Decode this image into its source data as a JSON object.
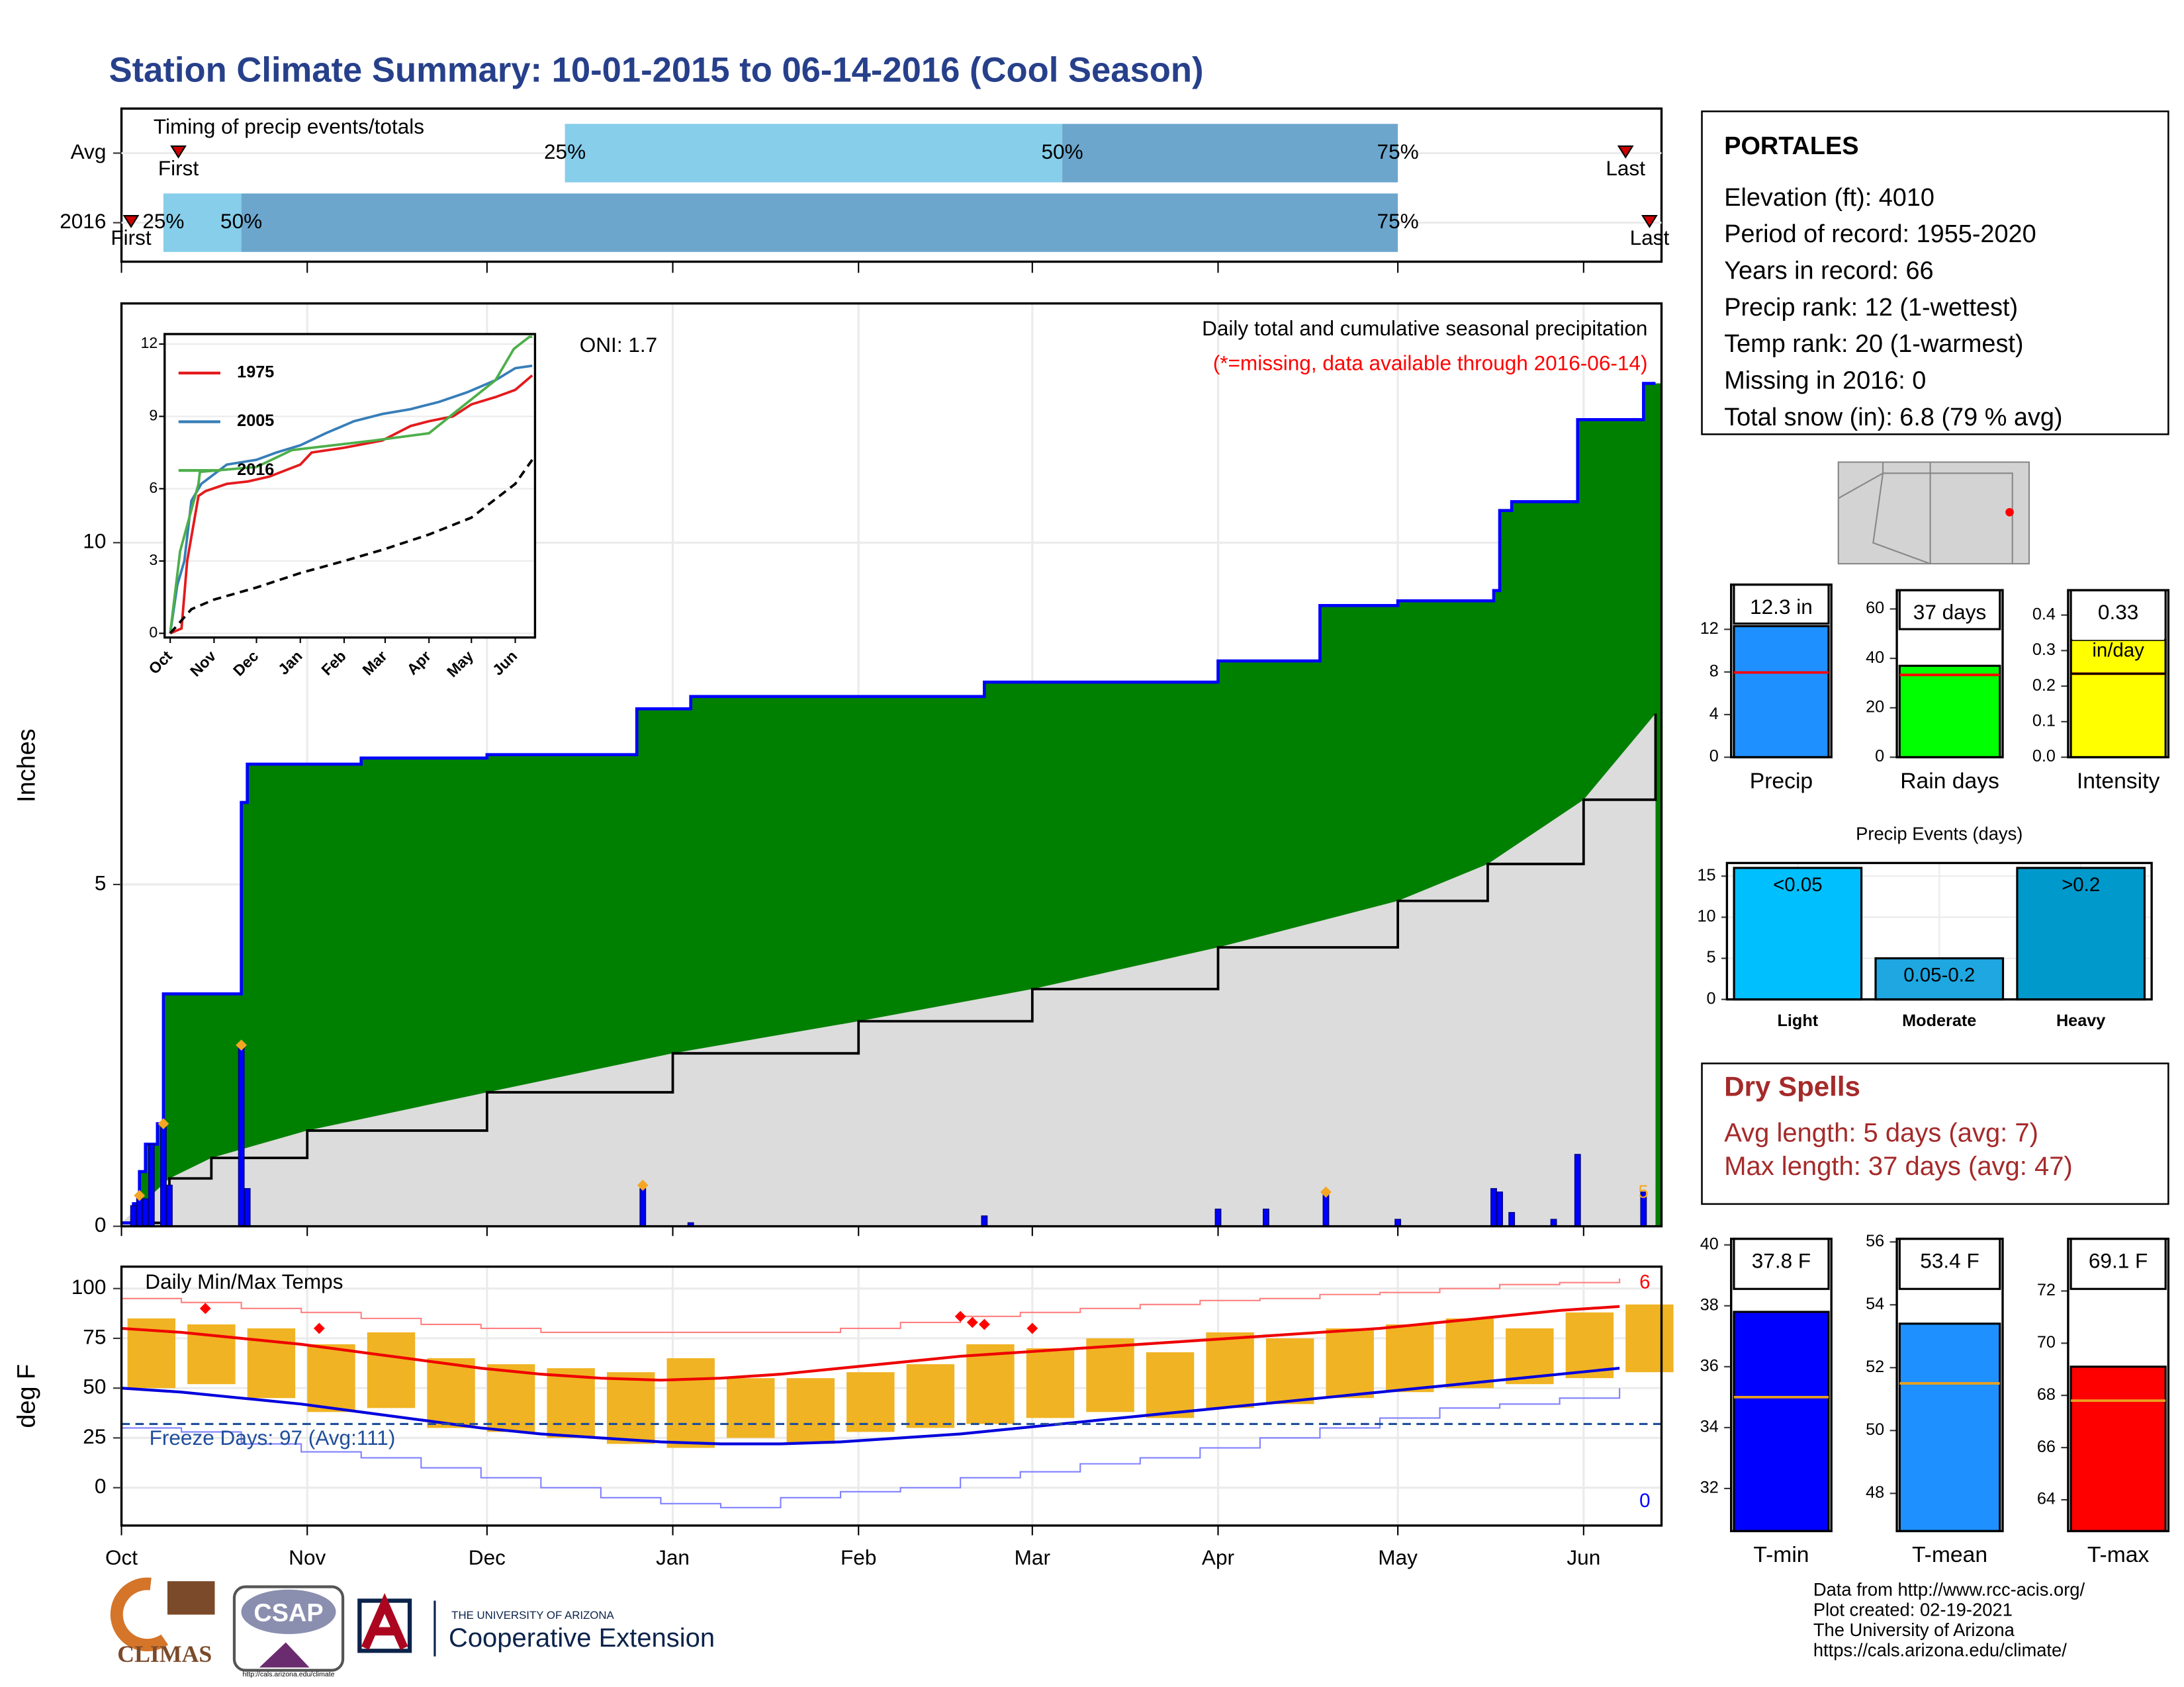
{
  "title": "Station Climate Summary: 10-01-2015 to 06-14-2016 (Cool Season)",
  "chart_data": [
    {
      "type": "timing",
      "title": "Timing of precip events/totals",
      "categories": [
        "Avg",
        "2016"
      ],
      "series": [
        {
          "name": "First",
          "values": [
            9.5,
            1.6
          ]
        },
        {
          "name": "25%",
          "values": [
            74,
            7
          ]
        },
        {
          "name": "50%",
          "values": [
            157,
            20
          ]
        },
        {
          "name": "75%",
          "values": [
            213,
            213
          ]
        },
        {
          "name": "Last",
          "values": [
            251,
            255
          ]
        }
      ],
      "colors": [
        "#87ceeb",
        "#6ca6cd"
      ],
      "marker_color": "#cc0000",
      "xlim": [
        0,
        257
      ]
    },
    {
      "type": "area",
      "title": "Daily total and cumulative seasonal precipitation",
      "subtitle": "(*=missing, data available through 2016-06-14)",
      "annotation": "ONI: 1.7",
      "ylabel": "Inches",
      "end_label": "5",
      "xlim": [
        0,
        257
      ],
      "xticks": [
        0,
        31,
        61,
        92,
        123,
        152,
        183,
        213,
        244
      ],
      "ylim": [
        0,
        13.5
      ],
      "yticks": [
        0,
        5,
        10
      ],
      "grid": true,
      "cumulative": {
        "color": "#008000",
        "line_color": "#0000ff",
        "x": [
          0,
          2,
          3,
          4,
          6,
          7,
          19,
          20,
          21,
          40,
          61,
          86,
          95,
          144,
          183,
          200,
          213,
          229,
          230,
          232,
          242,
          243,
          254,
          256
        ],
        "values": [
          0.05,
          0.33,
          0.8,
          1.2,
          1.5,
          3.4,
          3.4,
          6.2,
          6.76,
          6.85,
          6.9,
          7.57,
          7.75,
          7.96,
          8.27,
          9.08,
          9.15,
          9.3,
          10.47,
          10.6,
          10.6,
          11.8,
          12.33,
          12.33
        ]
      },
      "average": {
        "color": "#dcdcdc",
        "line_color": "#000000",
        "x": [
          0,
          8,
          15,
          31,
          61,
          92,
          123,
          152,
          183,
          213,
          228,
          244,
          256
        ],
        "values": [
          0.05,
          0.7,
          1.0,
          1.4,
          1.96,
          2.53,
          3.0,
          3.47,
          4.08,
          4.76,
          5.3,
          6.24,
          7.5
        ]
      },
      "daily": {
        "color": "#0000ff",
        "x": [
          2,
          3,
          4,
          5,
          7,
          8,
          20,
          21,
          87,
          95,
          144,
          183,
          191,
          201,
          213,
          229,
          230,
          232,
          239,
          243,
          254
        ],
        "values": [
          0.3,
          0.45,
          0.4,
          1.2,
          1.45,
          0.6,
          2.63,
          0.55,
          0.55,
          0.05,
          0.15,
          0.25,
          0.25,
          0.5,
          0.1,
          0.55,
          0.5,
          0.2,
          0.1,
          1.05,
          0.5
        ]
      },
      "markers": {
        "color": "#f5a623",
        "x": [
          3,
          7,
          20,
          87,
          201
        ],
        "values": [
          0.45,
          1.5,
          2.65,
          0.6,
          0.5
        ]
      }
    },
    {
      "type": "line",
      "xlim": [
        0,
        257
      ],
      "ylim": [
        0,
        12.3
      ],
      "yticks": [
        0,
        3,
        6,
        9,
        12
      ],
      "xticks": [
        {
          "value": 0,
          "label": "Oct"
        },
        {
          "value": 31,
          "label": "Nov"
        },
        {
          "value": 61,
          "label": "Dec"
        },
        {
          "value": 92,
          "label": "Jan"
        },
        {
          "value": 123,
          "label": "Feb"
        },
        {
          "value": 152,
          "label": "Mar"
        },
        {
          "value": 183,
          "label": "Apr"
        },
        {
          "value": 213,
          "label": "May"
        },
        {
          "value": 244,
          "label": "Jun"
        }
      ],
      "series": [
        {
          "name": "1975",
          "color": "#e41a1c",
          "x": [
            0,
            8,
            12,
            20,
            25,
            40,
            55,
            70,
            92,
            100,
            123,
            150,
            170,
            183,
            200,
            213,
            230,
            244,
            256
          ],
          "values": [
            0,
            0.2,
            3,
            5.7,
            5.9,
            6.2,
            6.3,
            6.5,
            7.0,
            7.5,
            7.7,
            8.0,
            8.6,
            8.8,
            9.0,
            9.5,
            9.8,
            10.1,
            10.7
          ]
        },
        {
          "name": "2005",
          "color": "#377eb8",
          "x": [
            0,
            5,
            10,
            15,
            22,
            40,
            61,
            75,
            92,
            110,
            130,
            150,
            170,
            190,
            210,
            230,
            244,
            256
          ],
          "values": [
            0,
            2,
            3,
            5.5,
            6.2,
            7.0,
            7.2,
            7.5,
            7.8,
            8.3,
            8.8,
            9.1,
            9.3,
            9.6,
            10,
            10.5,
            11,
            11.1
          ]
        },
        {
          "name": "2016",
          "color": "#4daf4a",
          "x": [
            0,
            7,
            20,
            21,
            61,
            86,
            144,
            183,
            200,
            230,
            243,
            254,
            256
          ],
          "values": [
            0,
            3.4,
            6.2,
            6.7,
            6.9,
            7.6,
            8,
            8.3,
            9.1,
            10.5,
            11.8,
            12.3,
            12.3
          ]
        },
        {
          "color": "#000000",
          "dashed": true,
          "x": [
            0,
            15,
            31,
            61,
            92,
            123,
            152,
            183,
            213,
            244,
            256
          ],
          "values": [
            0,
            1,
            1.4,
            1.9,
            2.5,
            3,
            3.5,
            4.1,
            4.8,
            6.2,
            7.2
          ]
        }
      ]
    },
    {
      "type": "range",
      "title": "Daily Min/Max Temps",
      "ylabel": "deg F",
      "freeze_label": "Freeze Days: 97 (Avg:111)",
      "freeze": 32,
      "high_count": "6",
      "low_count": "0",
      "xlim": [
        0,
        257
      ],
      "ylim": [
        -19,
        111
      ],
      "yticks": [
        0,
        25,
        50,
        75,
        100
      ],
      "grid": true,
      "xticks": [
        {
          "value": 0,
          "label": "Oct"
        },
        {
          "value": 31,
          "label": "Nov"
        },
        {
          "value": 61,
          "label": "Dec"
        },
        {
          "value": 92,
          "label": "Jan"
        },
        {
          "value": 123,
          "label": "Feb"
        },
        {
          "value": 152,
          "label": "Mar"
        },
        {
          "value": 183,
          "label": "Apr"
        },
        {
          "value": 213,
          "label": "May"
        },
        {
          "value": 244,
          "label": "Jun"
        }
      ],
      "x": [
        0,
        10,
        20,
        30,
        40,
        50,
        60,
        70,
        80,
        90,
        100,
        110,
        120,
        130,
        140,
        150,
        160,
        170,
        180,
        190,
        200,
        210,
        220,
        230,
        240,
        250
      ],
      "obs_max": [
        85,
        82,
        80,
        72,
        78,
        65,
        62,
        60,
        58,
        65,
        55,
        55,
        58,
        62,
        72,
        70,
        75,
        68,
        78,
        75,
        80,
        82,
        85,
        80,
        88,
        92
      ],
      "obs_min": [
        50,
        52,
        45,
        38,
        40,
        30,
        28,
        25,
        22,
        20,
        25,
        22,
        28,
        30,
        32,
        35,
        38,
        35,
        40,
        42,
        45,
        48,
        50,
        52,
        55,
        58
      ],
      "avg_max": [
        80,
        78,
        75,
        72,
        68,
        64,
        60,
        57,
        55,
        54,
        55,
        57,
        60,
        63,
        66,
        68,
        70,
        72,
        74,
        76,
        78,
        80,
        83,
        86,
        89,
        91
      ],
      "avg_min": [
        50,
        48,
        45,
        42,
        38,
        34,
        30,
        27,
        25,
        23,
        22,
        22,
        23,
        25,
        27,
        30,
        33,
        36,
        39,
        42,
        45,
        48,
        51,
        54,
        57,
        60
      ],
      "rec_max": [
        95,
        93,
        90,
        88,
        85,
        82,
        80,
        78,
        78,
        78,
        78,
        78,
        80,
        83,
        86,
        88,
        90,
        92,
        94,
        95,
        97,
        98,
        100,
        102,
        103,
        105
      ],
      "rec_min": [
        30,
        28,
        22,
        18,
        15,
        10,
        5,
        0,
        -5,
        -8,
        -10,
        -5,
        -2,
        0,
        5,
        8,
        12,
        15,
        20,
        25,
        30,
        35,
        40,
        42,
        45,
        50
      ],
      "records": {
        "x": [
          14,
          33,
          140,
          142,
          144,
          152
        ],
        "values": [
          90,
          80,
          86,
          83,
          82,
          80
        ]
      },
      "colors": {
        "bar": "#f0b323",
        "avg_max": "#ee0000",
        "avg_min": "#0000dd",
        "rec_max": "#ff8080",
        "rec_min": "#8080ff",
        "freeze": "#1f4e9a",
        "record": "#ff0000"
      }
    },
    {
      "type": "bar",
      "categories": [
        "Precip"
      ],
      "values": [
        12.3
      ],
      "value_labels": [
        "12.3 in"
      ],
      "average": 7.95,
      "color": "#1e90ff",
      "ylim": [
        0,
        16.2
      ],
      "yticks": [
        0,
        4,
        8,
        12
      ]
    },
    {
      "type": "bar",
      "categories": [
        "Rain days"
      ],
      "values": [
        37
      ],
      "value_labels": [
        "37 days"
      ],
      "average": 33.3,
      "color": "#00ff00",
      "ylim": [
        0,
        67.6
      ],
      "yticks": [
        0,
        20,
        40,
        60
      ]
    },
    {
      "type": "bar",
      "categories": [
        "Intensity"
      ],
      "values": [
        0.33
      ],
      "value_labels": [
        "0.33"
      ],
      "unit": "in/day",
      "average": 0.235,
      "color": "#ffff00",
      "ylim": [
        0,
        0.47
      ],
      "yticks": [
        {
          "value": 0,
          "label": "0.0"
        },
        0.1,
        0.2,
        0.3,
        0.4
      ]
    },
    {
      "type": "events",
      "title": "Precip Events (days)",
      "categories": [
        "Light",
        "Moderate",
        "Heavy"
      ],
      "values": [
        16,
        5,
        16
      ],
      "bin_labels": [
        "<0.05",
        "0.05-0.2",
        ">0.2"
      ],
      "colors": [
        "#00bfff",
        "#1ea7e1",
        "#0099cc"
      ],
      "ylim": [
        0,
        16.6
      ],
      "yticks": [
        0,
        5,
        10,
        15
      ],
      "grid": true
    },
    {
      "type": "bar",
      "categories": [
        "T-min"
      ],
      "values": [
        37.8
      ],
      "value_labels": [
        "37.8 F"
      ],
      "average": 35.0,
      "color": "#0000ff",
      "ylim": [
        30.6,
        40.2
      ],
      "yticks": [
        32,
        34,
        36,
        38,
        40
      ]
    },
    {
      "type": "bar",
      "categories": [
        "T-mean"
      ],
      "values": [
        53.4
      ],
      "value_labels": [
        "53.4 F"
      ],
      "average": 51.5,
      "color": "#1e90ff",
      "ylim": [
        46.8,
        56.1
      ],
      "yticks": [
        48,
        50,
        52,
        54,
        56
      ]
    },
    {
      "type": "bar",
      "categories": [
        "T-max"
      ],
      "values": [
        69.1
      ],
      "value_labels": [
        "69.1 F"
      ],
      "average": 67.8,
      "color": "#ff0000",
      "ylim": [
        62.8,
        74
      ],
      "yticks": [
        64,
        66,
        68,
        70,
        72
      ]
    }
  ],
  "station": {
    "name": "PORTALES",
    "lines": [
      "Elevation (ft): 4010",
      "Period of record: 1955-2020",
      "Years in record: 66",
      "Precip rank: 12 (1-wettest)",
      "Temp rank: 20 (1-warmest)",
      "Missing in 2016: 0",
      "Total snow (in): 6.8 (79 % avg)"
    ]
  },
  "dry_spells": {
    "title": "Dry Spells",
    "lines": [
      "Avg length: 5 days (avg: 7)",
      "Max length: 37 days (avg: 47)"
    ]
  },
  "footer": [
    "Data from http://www.rcc-acis.org/",
    "Plot created: 02-19-2021",
    "The University of Arizona",
    "https://cals.arizona.edu/climate/"
  ],
  "logos": {
    "climas": "CLIMAS",
    "csap": "CSAP",
    "csap_url": "http://cals.arizona.edu/climate",
    "ua": "THE UNIVERSITY OF ARIZONA",
    "extension": "Cooperative Extension"
  }
}
